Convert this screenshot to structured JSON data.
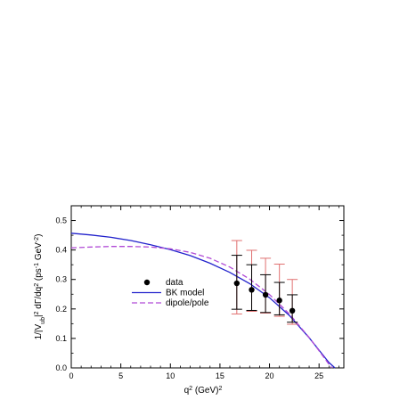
{
  "chart_data": {
    "type": "line",
    "xlabel": {
      "main": "q",
      "sup": "2",
      "tail": " (GeV)",
      "sup2": "2"
    },
    "ylabel": {
      "parts": [
        {
          "t": "1/|V",
          "k": "n"
        },
        {
          "t": "ub",
          "k": "sub"
        },
        {
          "t": "|",
          "k": "n"
        },
        {
          "t": "2",
          "k": "sup"
        },
        {
          "t": " dΓ/dq",
          "k": "n"
        },
        {
          "t": "2",
          "k": "sup"
        },
        {
          "t": " (ps",
          "k": "n"
        },
        {
          "t": "-1",
          "k": "sup"
        },
        {
          "t": " GeV",
          "k": "n"
        },
        {
          "t": "-2",
          "k": "sup"
        },
        {
          "t": ")",
          "k": "n"
        }
      ]
    },
    "xlim": [
      0,
      27.5
    ],
    "ylim": [
      0,
      0.55
    ],
    "x_ticks": [
      0,
      5,
      10,
      15,
      20,
      25
    ],
    "x_tick_labels": [
      "0",
      "5",
      "10",
      "15",
      "20",
      "25"
    ],
    "y_ticks": [
      0.0,
      0.1,
      0.2,
      0.3,
      0.4,
      0.5
    ],
    "y_tick_labels": [
      "0.0",
      "0.1",
      "0.2",
      "0.3",
      "0.4",
      "0.5"
    ],
    "legend": [
      {
        "label": "data",
        "kind": "marker"
      },
      {
        "label": "BK model",
        "kind": "solid"
      },
      {
        "label": "dipole/pole",
        "kind": "dashed"
      }
    ],
    "legend_position": "left-center",
    "series": [
      {
        "name": "data",
        "kind": "points",
        "color": "#000000",
        "points": [
          {
            "x": 16.7,
            "y": 0.287,
            "inner_err": [
              0.199,
              0.382
            ],
            "outer_err": [
              0.183,
              0.432
            ]
          },
          {
            "x": 18.2,
            "y": 0.265,
            "inner_err": [
              0.195,
              0.35
            ],
            "outer_err": [
              0.192,
              0.399
            ]
          },
          {
            "x": 19.6,
            "y": 0.248,
            "inner_err": [
              0.188,
              0.316
            ],
            "outer_err": [
              0.186,
              0.372
            ]
          },
          {
            "x": 21.0,
            "y": 0.229,
            "inner_err": [
              0.18,
              0.29
            ],
            "outer_err": [
              0.175,
              0.352
            ]
          },
          {
            "x": 22.3,
            "y": 0.194,
            "inner_err": [
              0.155,
              0.248
            ],
            "outer_err": [
              0.148,
              0.3
            ]
          }
        ],
        "inner_color": "#000000",
        "outer_color": "#e07070"
      },
      {
        "name": "BK model",
        "kind": "solid",
        "color": "#2222cc",
        "x": [
          0,
          2,
          4,
          6,
          8,
          10,
          12,
          14,
          16,
          18,
          20,
          22,
          24,
          25,
          26,
          26.6
        ],
        "y": [
          0.457,
          0.451,
          0.443,
          0.432,
          0.418,
          0.401,
          0.381,
          0.355,
          0.324,
          0.286,
          0.238,
          0.178,
          0.102,
          0.06,
          0.018,
          0.0
        ]
      },
      {
        "name": "dipole/pole",
        "kind": "dashed",
        "color": "#b14bd6",
        "x": [
          0,
          2,
          4,
          6,
          8,
          10,
          12,
          14,
          16,
          18,
          20,
          22,
          24,
          25,
          26,
          26.3
        ],
        "y": [
          0.407,
          0.41,
          0.412,
          0.412,
          0.41,
          0.404,
          0.392,
          0.372,
          0.342,
          0.301,
          0.249,
          0.183,
          0.103,
          0.058,
          0.012,
          0.0
        ]
      }
    ]
  }
}
